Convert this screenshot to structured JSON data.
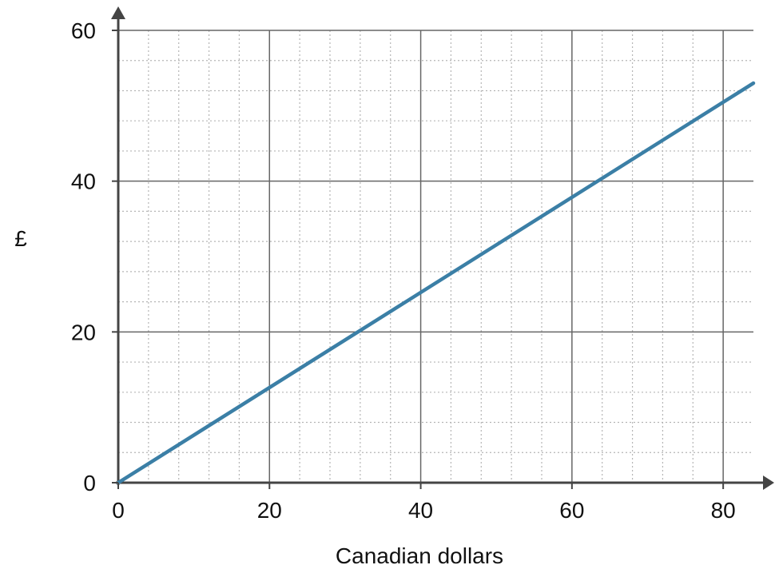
{
  "chart_data": {
    "type": "line",
    "xlabel": "Canadian dollars",
    "ylabel": "£",
    "xlim": [
      0,
      84
    ],
    "ylim": [
      0,
      60
    ],
    "x_ticks": [
      "0",
      "20",
      "40",
      "60",
      "80"
    ],
    "y_ticks": [
      "0",
      "20",
      "40",
      "60"
    ],
    "x_tick_values": [
      0,
      20,
      40,
      60,
      80
    ],
    "y_tick_values": [
      0,
      20,
      40,
      60
    ],
    "grid": true,
    "minor_grid_step_x": 4,
    "minor_grid_step_y": 4,
    "series": [
      {
        "color": "#3b7fa6",
        "points": [
          {
            "x": 0,
            "y": 0
          },
          {
            "x": 84,
            "y": 53
          }
        ]
      }
    ]
  },
  "colors": {
    "axis": "#444444",
    "major_grid": "#666666",
    "minor_grid": "#b5b5b5",
    "line": "#3b7fa6"
  }
}
